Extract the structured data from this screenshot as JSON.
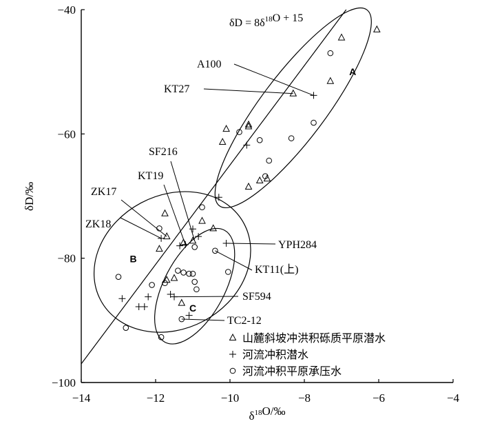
{
  "chart_data": {
    "type": "scatter",
    "title": "",
    "xlabel": "δ18O/‰",
    "ylabel": "δD/‰",
    "xlim": [
      -14,
      -4
    ],
    "ylim": [
      -100,
      -40
    ],
    "xticks": [
      -14,
      -12,
      -10,
      -8,
      -6,
      -4
    ],
    "yticks": [
      -100,
      -80,
      -60,
      -40
    ],
    "grid": false,
    "legend_position": "bottom-right",
    "line": {
      "label": "δD = 8δ18O + 15",
      "slope": 8,
      "intercept": 15
    },
    "series": [
      {
        "name": "山麓斜坡冲洪积砾质平原潜水",
        "marker": "triangle",
        "points": [
          [
            -6.05,
            -43.2
          ],
          [
            -7.0,
            -44.5
          ],
          [
            -7.3,
            -51.5
          ],
          [
            -8.3,
            -53.5
          ],
          [
            -9.5,
            -58.5
          ],
          [
            -9.5,
            -58.8
          ],
          [
            -10.1,
            -59.2
          ],
          [
            -10.2,
            -61.3
          ],
          [
            -9.2,
            -67.5
          ],
          [
            -9.0,
            -67.2
          ],
          [
            -9.5,
            -68.5
          ],
          [
            -11.75,
            -72.8
          ],
          [
            -11.7,
            -76.5
          ],
          [
            -11.9,
            -78.5
          ],
          [
            -11.0,
            -77.2
          ],
          [
            -11.25,
            -77.5
          ],
          [
            -10.75,
            -74.0
          ],
          [
            -10.45,
            -75.2
          ],
          [
            -11.5,
            -83.2
          ],
          [
            -11.7,
            -83.5
          ],
          [
            -11.3,
            -87.2
          ]
        ]
      },
      {
        "name": "河流冲积潜水",
        "marker": "plus",
        "points": [
          [
            -7.75,
            -53.8
          ],
          [
            -9.55,
            -61.8
          ],
          [
            -10.3,
            -70.2
          ],
          [
            -11.85,
            -76.8
          ],
          [
            -11.0,
            -75.3
          ],
          [
            -10.85,
            -76.5
          ],
          [
            -11.2,
            -77.8
          ],
          [
            -11.35,
            -78.0
          ],
          [
            -10.1,
            -77.6
          ],
          [
            -12.9,
            -86.5
          ],
          [
            -12.2,
            -86.2
          ],
          [
            -12.45,
            -87.8
          ],
          [
            -12.3,
            -87.8
          ],
          [
            -11.6,
            -85.8
          ],
          [
            -11.5,
            -86.2
          ],
          [
            -11.1,
            -89.2
          ]
        ]
      },
      {
        "name": "河流冲积平原承压水",
        "marker": "circle",
        "points": [
          [
            -7.3,
            -47.0
          ],
          [
            -7.75,
            -58.2
          ],
          [
            -8.35,
            -60.7
          ],
          [
            -9.2,
            -61.0
          ],
          [
            -9.75,
            -59.7
          ],
          [
            -8.95,
            -64.3
          ],
          [
            -9.05,
            -66.8
          ],
          [
            -11.9,
            -75.2
          ],
          [
            -10.75,
            -71.8
          ],
          [
            -10.95,
            -78.2
          ],
          [
            -10.4,
            -78.8
          ],
          [
            -10.05,
            -82.2
          ],
          [
            -11.4,
            -82.0
          ],
          [
            -11.25,
            -82.3
          ],
          [
            -11.1,
            -82.5
          ],
          [
            -11.0,
            -82.5
          ],
          [
            -10.95,
            -83.8
          ],
          [
            -10.9,
            -85.0
          ],
          [
            -13.0,
            -83.0
          ],
          [
            -12.1,
            -84.3
          ],
          [
            -11.75,
            -84.0
          ],
          [
            -12.8,
            -91.2
          ],
          [
            -11.85,
            -92.7
          ],
          [
            -11.3,
            -89.8
          ]
        ]
      }
    ],
    "annotations": [
      {
        "text": "A100",
        "point": [
          -7.75,
          -53.8
        ]
      },
      {
        "text": "KT27",
        "point": [
          -8.3,
          -53.5
        ]
      },
      {
        "text": "SF216",
        "point": [
          -10.95,
          -77.2
        ]
      },
      {
        "text": "KT19",
        "point": [
          -11.2,
          -77.8
        ]
      },
      {
        "text": "ZK17",
        "point": [
          -11.7,
          -76.5
        ]
      },
      {
        "text": "ZK18",
        "point": [
          -11.85,
          -76.8
        ]
      },
      {
        "text": "YPH284",
        "point": [
          -10.1,
          -77.6
        ]
      },
      {
        "text": "KT11(上)",
        "point": [
          -10.4,
          -78.8
        ]
      },
      {
        "text": "SF594",
        "point": [
          -11.5,
          -86.2
        ]
      },
      {
        "text": "TC2-12",
        "point": [
          -11.3,
          -89.8
        ]
      }
    ],
    "groups": [
      {
        "label": "A",
        "center": [
          -6.7,
          -50.0
        ]
      },
      {
        "label": "B",
        "center": [
          -12.6,
          -80.1
        ]
      },
      {
        "label": "C",
        "center": [
          -11.0,
          -88.0
        ]
      }
    ]
  }
}
